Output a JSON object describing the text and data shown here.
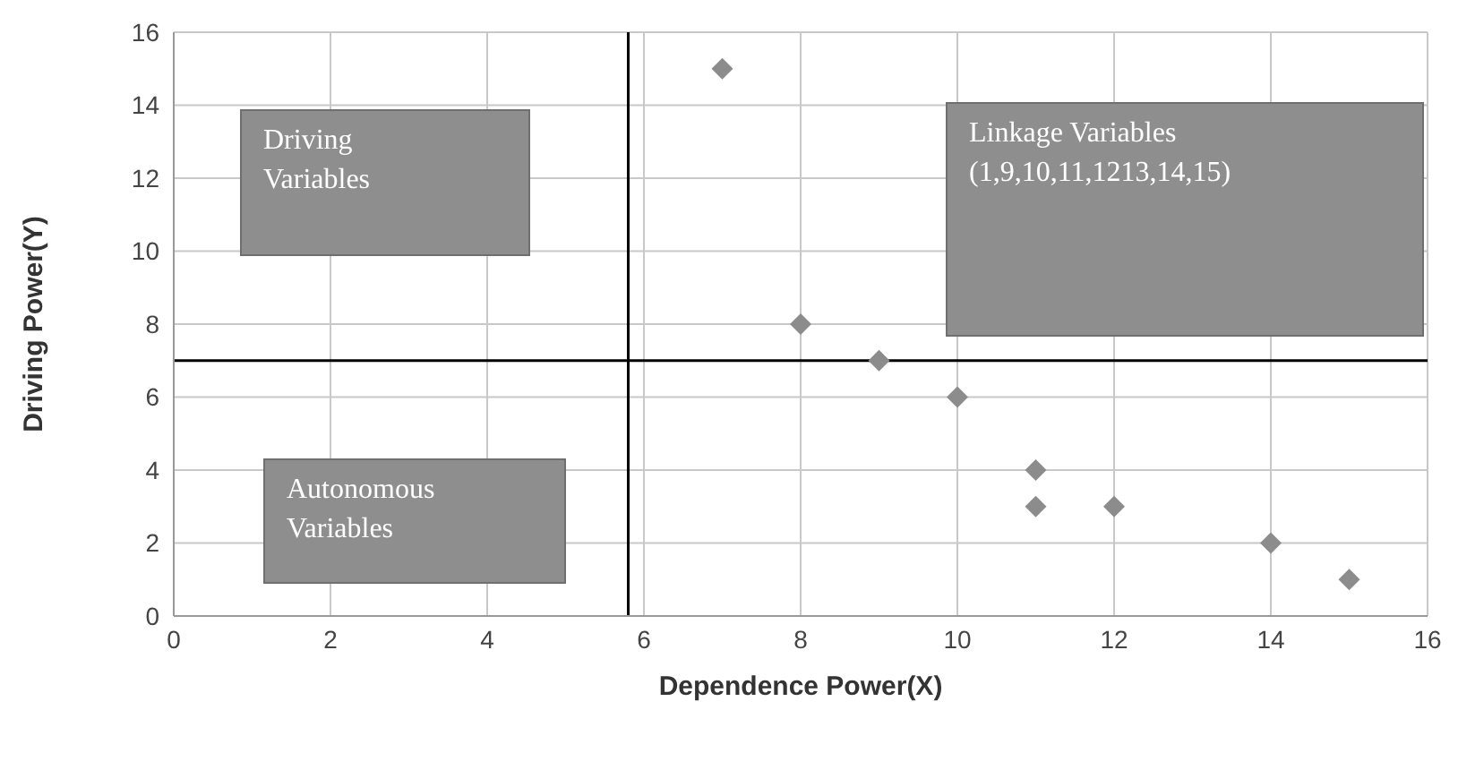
{
  "chart_data": {
    "type": "scatter",
    "xlabel": "Dependence Power(X)",
    "ylabel": "Driving Power(Y)",
    "x": [
      7,
      8,
      9,
      10,
      11,
      11,
      12,
      14,
      15
    ],
    "series": [
      {
        "color": "#8c8c8c",
        "values": [
          15,
          8,
          7,
          6,
          4,
          3,
          3,
          2,
          1
        ]
      }
    ],
    "xlim": [
      0,
      16
    ],
    "xticks": [
      0,
      2,
      4,
      6,
      8,
      10,
      12,
      14,
      16
    ],
    "ylim": [
      0,
      16
    ],
    "yticks": [
      0,
      2,
      4,
      6,
      8,
      10,
      12,
      14,
      16
    ],
    "grid": true,
    "marker": "diamond",
    "ref_lines": [
      {
        "axis": "x",
        "value": 5.8,
        "color": "#000000"
      },
      {
        "axis": "y",
        "value": 7,
        "color": "#000000"
      }
    ],
    "annotations": [
      "Driving Variables",
      "Linkage Variables (1,9,10,11,1213,14,15)",
      "Autonomous Variables"
    ]
  }
}
